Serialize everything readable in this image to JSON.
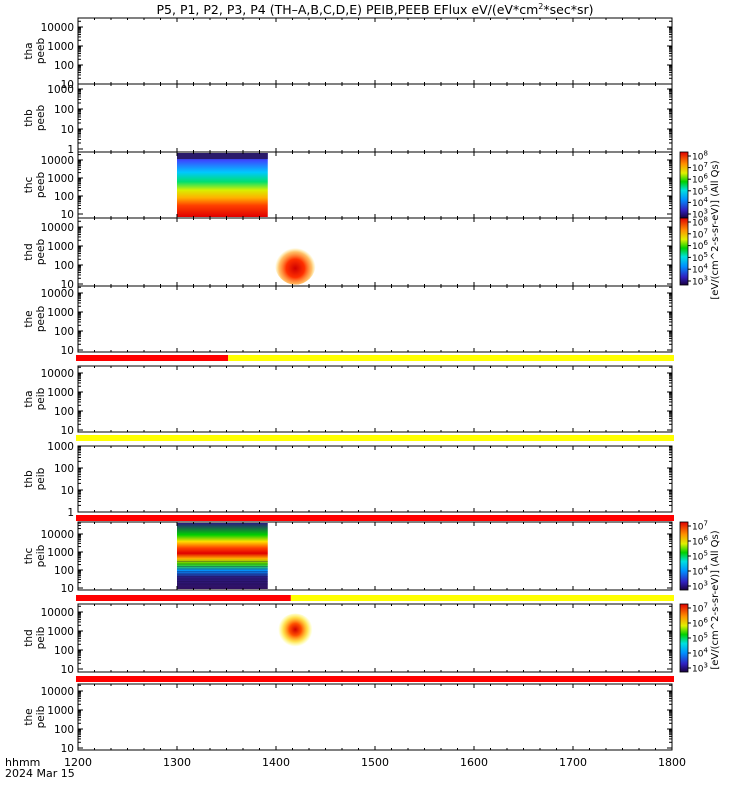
{
  "title_parts": [
    "P5, P1, P2, P3, P4 (TH–A,B,C,D,E) PEIB,PEEB EFlux eV/(eV*cm",
    "2",
    "*sec*sr)"
  ],
  "time_axis": {
    "label_line1": "hhmm",
    "label_line2": "2024 Mar 15",
    "ticks": [
      "1200",
      "1300",
      "1400",
      "1500",
      "1600",
      "1700",
      "1800"
    ]
  },
  "colorbar_labels": {
    "peeb": "[eV/(cm^2-s-sr-eV)] (All Qs)",
    "peib": "[eV/(cm^2-s-sr-eV)] (All Qs)"
  },
  "colorbars": [
    {
      "id": "cb-thc-peeb",
      "ticks": [
        "8",
        "7",
        "6",
        "5",
        "4",
        "3"
      ]
    },
    {
      "id": "cb-thd-peeb",
      "ticks": [
        "8",
        "7",
        "6",
        "5",
        "4",
        "3"
      ]
    },
    {
      "id": "cb-thc-peib",
      "ticks": [
        "7",
        "6",
        "5",
        "4",
        "3"
      ]
    },
    {
      "id": "cb-thd-peib",
      "ticks": [
        "7",
        "6",
        "5",
        "4",
        "3"
      ]
    }
  ],
  "colors": {
    "mode_red": "#ff0000",
    "mode_yellow": "#ffff00",
    "black": "#000000"
  },
  "panels": [
    {
      "label1": "tha",
      "label2": "peeb",
      "yticks": [
        "10000",
        "1000",
        "100",
        "10"
      ]
    },
    {
      "label1": "thb",
      "label2": "peeb",
      "yticks": [
        "1000",
        "100",
        "10",
        "1"
      ]
    },
    {
      "label1": "thc",
      "label2": "peeb",
      "yticks": [
        "10000",
        "1000",
        "100",
        "10"
      ]
    },
    {
      "label1": "thd",
      "label2": "peeb",
      "yticks": [
        "10000",
        "1000",
        "100",
        "10"
      ]
    },
    {
      "label1": "the",
      "label2": "peeb",
      "yticks": [
        "10000",
        "1000",
        "100",
        "10"
      ]
    },
    {
      "label1": "tha",
      "label2": "peib",
      "yticks": [
        "10000",
        "1000",
        "100",
        "10"
      ]
    },
    {
      "label1": "thb",
      "label2": "peib",
      "yticks": [
        "1000",
        "100",
        "10",
        "1"
      ]
    },
    {
      "label1": "thc",
      "label2": "peib",
      "yticks": [
        "10000",
        "1000",
        "100",
        "10"
      ]
    },
    {
      "label1": "thd",
      "label2": "peib",
      "yticks": [
        "10000",
        "1000",
        "100",
        "10"
      ]
    },
    {
      "label1": "the",
      "label2": "peib",
      "yticks": [
        "10000",
        "1000",
        "100",
        "10"
      ]
    }
  ],
  "chart_data": {
    "type": "heatmap",
    "title": "P5, P1, P2, P3, P4 (TH-A,B,C,D,E) PEIB,PEEB EFlux eV/(eV*cm^2*sec*sr)",
    "x_range_hhmm": [
      "1200",
      "1800"
    ],
    "spectrogram_blocks": [
      {
        "panel": "thc peeb",
        "t_start": "1300",
        "t_end": "1355",
        "pattern": "electron",
        "colorscale_exponent_range": [
          3,
          8
        ]
      },
      {
        "panel": "thd peeb",
        "t_start": "1373",
        "t_end": "1408",
        "pattern": "electron-core",
        "colorscale_exponent_range": [
          3,
          8
        ]
      },
      {
        "panel": "thc peib",
        "t_start": "1300",
        "t_end": "1355",
        "pattern": "ion-band",
        "colorscale_exponent_range": [
          3,
          7
        ]
      },
      {
        "panel": "thd peib",
        "t_start": "1373",
        "t_end": "1408",
        "pattern": "ion-core",
        "colorscale_exponent_range": [
          3,
          7
        ]
      }
    ],
    "mode_bars": [
      {
        "after_panel": "the peeb",
        "segments": [
          {
            "from": "1200",
            "to": "1291",
            "color": "red"
          },
          {
            "from": "1291",
            "to": "1800",
            "color": "yellow"
          }
        ]
      },
      {
        "after_panel": "tha peib",
        "segments": [
          {
            "from": "1200",
            "to": "1800",
            "color": "yellow"
          }
        ]
      },
      {
        "after_panel": "thb peib",
        "segments": [
          {
            "from": "1200",
            "to": "1800",
            "color": "red"
          }
        ]
      },
      {
        "after_panel": "thc peib",
        "segments": [
          {
            "from": "1200",
            "to": "1409",
            "color": "red"
          },
          {
            "from": "1409",
            "to": "1800",
            "color": "yellow"
          }
        ]
      },
      {
        "after_panel": "thd peib",
        "segments": [
          {
            "from": "1200",
            "to": "1800",
            "color": "red"
          }
        ]
      }
    ]
  }
}
